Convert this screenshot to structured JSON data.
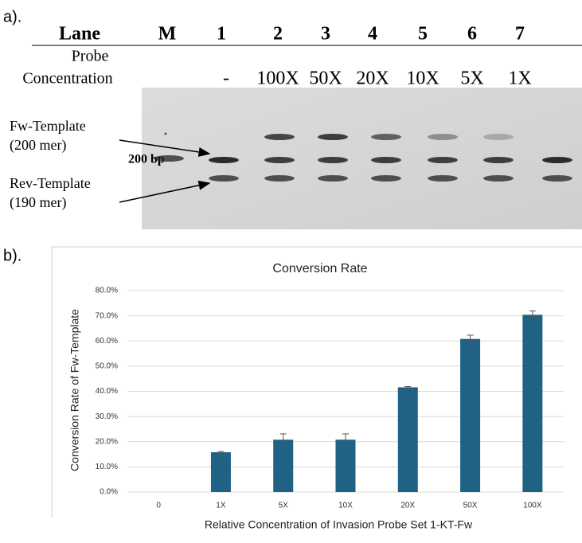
{
  "gel": {
    "panel_label": "a).",
    "lane_label": "Lane",
    "lanes": [
      "M",
      "1",
      "2",
      "3",
      "4",
      "5",
      "6",
      "7"
    ],
    "probe_label": [
      "Probe",
      "Concentration"
    ],
    "concentrations": [
      "-",
      "100X",
      "50X",
      "20X",
      "10X",
      "5X",
      "1X"
    ],
    "marker_label": "200 bp",
    "annotations": [
      [
        "Fw-Template",
        "(200 mer)"
      ],
      [
        "Rev-Template",
        "(190 mer)"
      ]
    ]
  },
  "panel_b_label": "b).",
  "chart_data": {
    "type": "bar",
    "title": "Conversion Rate",
    "x_label": "Relative Concentration of Invasion Probe Set 1-KT-Fw",
    "y_label": "Conversion Rate of Fw-Template",
    "categories": [
      "0",
      "1X",
      "5X",
      "10X",
      "20X",
      "50X",
      "100X"
    ],
    "series": [
      {
        "color": "#1f6283",
        "values": [
          0,
          15.8,
          20.8,
          20.8,
          41.6,
          60.8,
          70.4
        ],
        "errors": [
          null,
          0.3,
          2.3,
          2.3,
          0.3,
          1.5,
          1.5
        ]
      }
    ],
    "ylim": [
      0,
      80
    ],
    "yticks": [
      {
        "value": 0,
        "label": "0.0%"
      },
      {
        "value": 10,
        "label": "10.0%"
      },
      {
        "value": 20,
        "label": "20.0%"
      },
      {
        "value": 30,
        "label": "30.0%"
      },
      {
        "value": 40,
        "label": "40.0%"
      },
      {
        "value": 50,
        "label": "50.0%"
      },
      {
        "value": 60,
        "label": "60.0%"
      },
      {
        "value": 70,
        "label": "70.0%"
      },
      {
        "value": 80,
        "label": "80.0%"
      }
    ],
    "grid": true
  }
}
